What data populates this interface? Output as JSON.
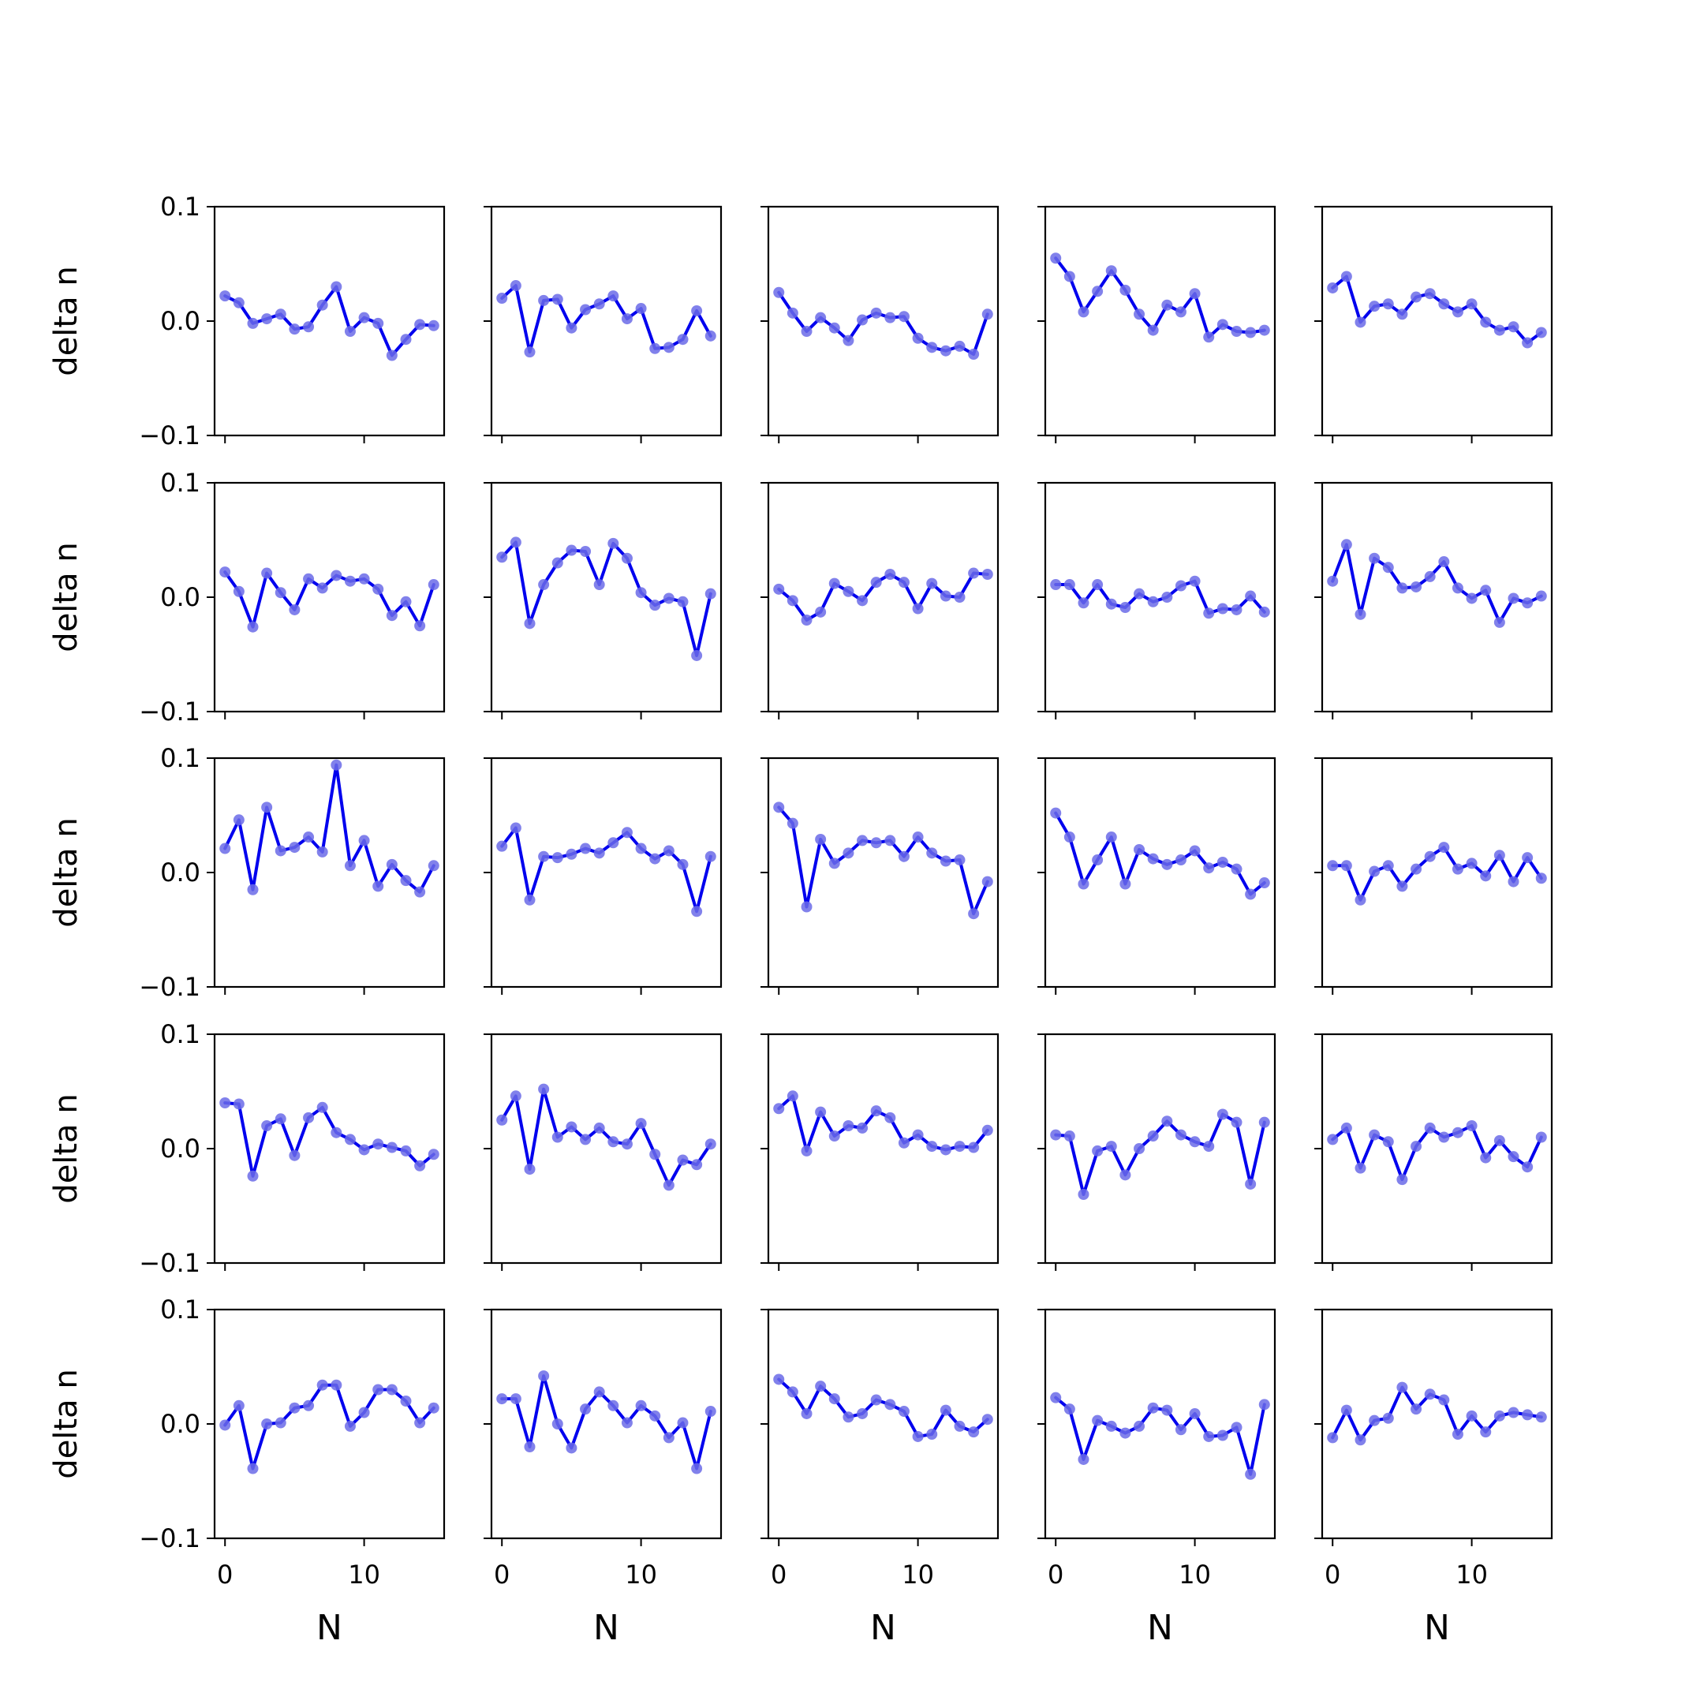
{
  "chart_data": {
    "type": "line",
    "layout": {
      "rows": 5,
      "cols": 5,
      "sharex": true,
      "sharey": true
    },
    "x": [
      0,
      1,
      2,
      3,
      4,
      5,
      6,
      7,
      8,
      9,
      10,
      11,
      12,
      13,
      14,
      15
    ],
    "xlabel": "N",
    "ylabel": "delta n",
    "xlim": [
      -0.75,
      15.75
    ],
    "ylim": [
      -0.1,
      0.1
    ],
    "xticks": [
      0,
      10
    ],
    "xtick_labels": [
      "0",
      "10"
    ],
    "yticks": [
      -0.1,
      0.0,
      0.1
    ],
    "ytick_labels": [
      "−0.1",
      "0.0",
      "0.1"
    ],
    "grid": false,
    "line_color": "#0000ee",
    "marker_color": "#6b6be8",
    "panels": [
      [
        0.022,
        0.016,
        -0.002,
        0.002,
        0.006,
        -0.007,
        -0.005,
        0.014,
        0.03,
        -0.009,
        0.003,
        -0.002,
        -0.03,
        -0.016,
        -0.003,
        -0.004
      ],
      [
        0.02,
        0.031,
        -0.027,
        0.018,
        0.019,
        -0.006,
        0.01,
        0.015,
        0.022,
        0.002,
        0.011,
        -0.024,
        -0.023,
        -0.016,
        0.009,
        -0.013
      ],
      [
        0.025,
        0.007,
        -0.009,
        0.003,
        -0.006,
        -0.017,
        0.001,
        0.007,
        0.003,
        0.004,
        -0.015,
        -0.023,
        -0.026,
        -0.022,
        -0.029,
        0.006
      ],
      [
        0.055,
        0.039,
        0.008,
        0.026,
        0.044,
        0.027,
        0.006,
        -0.008,
        0.014,
        0.008,
        0.024,
        -0.014,
        -0.003,
        -0.009,
        -0.01,
        -0.008
      ],
      [
        0.029,
        0.039,
        -0.001,
        0.013,
        0.015,
        0.006,
        0.021,
        0.024,
        0.015,
        0.008,
        0.015,
        -0.001,
        -0.008,
        -0.005,
        -0.019,
        -0.01
      ],
      [
        0.022,
        0.005,
        -0.026,
        0.021,
        0.004,
        -0.011,
        0.016,
        0.008,
        0.019,
        0.014,
        0.016,
        0.007,
        -0.016,
        -0.004,
        -0.025,
        0.011
      ],
      [
        0.035,
        0.048,
        -0.023,
        0.011,
        0.03,
        0.041,
        0.04,
        0.011,
        0.047,
        0.034,
        0.004,
        -0.007,
        -0.001,
        -0.004,
        -0.051,
        0.003
      ],
      [
        0.007,
        -0.003,
        -0.02,
        -0.013,
        0.012,
        0.005,
        -0.003,
        0.013,
        0.02,
        0.013,
        -0.01,
        0.012,
        0.001,
        0.0,
        0.021,
        0.02
      ],
      [
        0.011,
        0.011,
        -0.005,
        0.011,
        -0.006,
        -0.009,
        0.003,
        -0.004,
        0.0,
        0.01,
        0.014,
        -0.014,
        -0.01,
        -0.011,
        0.001,
        -0.013
      ],
      [
        0.014,
        0.046,
        -0.015,
        0.034,
        0.026,
        0.008,
        0.009,
        0.018,
        0.031,
        0.008,
        -0.001,
        0.006,
        -0.022,
        -0.001,
        -0.005,
        0.001
      ],
      [
        0.021,
        0.046,
        -0.015,
        0.057,
        0.019,
        0.022,
        0.031,
        0.018,
        0.094,
        0.006,
        0.028,
        -0.012,
        0.007,
        -0.007,
        -0.017,
        0.006
      ],
      [
        0.023,
        0.039,
        -0.024,
        0.014,
        0.013,
        0.016,
        0.021,
        0.017,
        0.026,
        0.035,
        0.021,
        0.012,
        0.019,
        0.007,
        -0.034,
        0.014
      ],
      [
        0.057,
        0.043,
        -0.03,
        0.029,
        0.008,
        0.017,
        0.028,
        0.026,
        0.028,
        0.014,
        0.031,
        0.017,
        0.01,
        0.011,
        -0.036,
        -0.008
      ],
      [
        0.052,
        0.031,
        -0.01,
        0.011,
        0.031,
        -0.01,
        0.02,
        0.012,
        0.007,
        0.011,
        0.019,
        0.004,
        0.009,
        0.003,
        -0.019,
        -0.009
      ],
      [
        0.006,
        0.006,
        -0.024,
        0.001,
        0.006,
        -0.012,
        0.003,
        0.014,
        0.022,
        0.003,
        0.008,
        -0.003,
        0.015,
        -0.008,
        0.013,
        -0.005
      ],
      [
        0.04,
        0.039,
        -0.024,
        0.02,
        0.026,
        -0.006,
        0.027,
        0.036,
        0.014,
        0.008,
        -0.001,
        0.004,
        0.001,
        -0.002,
        -0.015,
        -0.005
      ],
      [
        0.025,
        0.046,
        -0.018,
        0.052,
        0.01,
        0.019,
        0.008,
        0.018,
        0.006,
        0.004,
        0.022,
        -0.005,
        -0.032,
        -0.01,
        -0.014,
        0.004
      ],
      [
        0.035,
        0.046,
        -0.002,
        0.032,
        0.011,
        0.02,
        0.018,
        0.033,
        0.027,
        0.005,
        0.012,
        0.002,
        -0.001,
        0.002,
        0.001,
        0.016
      ],
      [
        0.012,
        0.011,
        -0.04,
        -0.002,
        0.002,
        -0.023,
        0.0,
        0.011,
        0.024,
        0.012,
        0.006,
        0.002,
        0.03,
        0.023,
        -0.031,
        0.023
      ],
      [
        0.008,
        0.018,
        -0.017,
        0.012,
        0.006,
        -0.027,
        0.002,
        0.018,
        0.01,
        0.014,
        0.02,
        -0.008,
        0.007,
        -0.007,
        -0.016,
        0.01
      ],
      [
        -0.001,
        0.016,
        -0.039,
        0.0,
        0.001,
        0.014,
        0.016,
        0.034,
        0.034,
        -0.002,
        0.01,
        0.03,
        0.03,
        0.02,
        0.001,
        0.014
      ],
      [
        0.022,
        0.022,
        -0.02,
        0.042,
        0.0,
        -0.021,
        0.013,
        0.028,
        0.016,
        0.001,
        0.016,
        0.007,
        -0.012,
        0.001,
        -0.039,
        0.011
      ],
      [
        0.039,
        0.028,
        0.009,
        0.033,
        0.022,
        0.006,
        0.009,
        0.021,
        0.017,
        0.011,
        -0.011,
        -0.009,
        0.012,
        -0.002,
        -0.007,
        0.004
      ],
      [
        0.023,
        0.013,
        -0.031,
        0.003,
        -0.002,
        -0.008,
        -0.002,
        0.014,
        0.012,
        -0.005,
        0.009,
        -0.011,
        -0.01,
        -0.003,
        -0.044,
        0.017
      ],
      [
        -0.012,
        0.012,
        -0.014,
        0.003,
        0.005,
        0.032,
        0.013,
        0.026,
        0.021,
        -0.009,
        0.007,
        -0.007,
        0.007,
        0.01,
        0.008,
        0.006
      ]
    ]
  }
}
